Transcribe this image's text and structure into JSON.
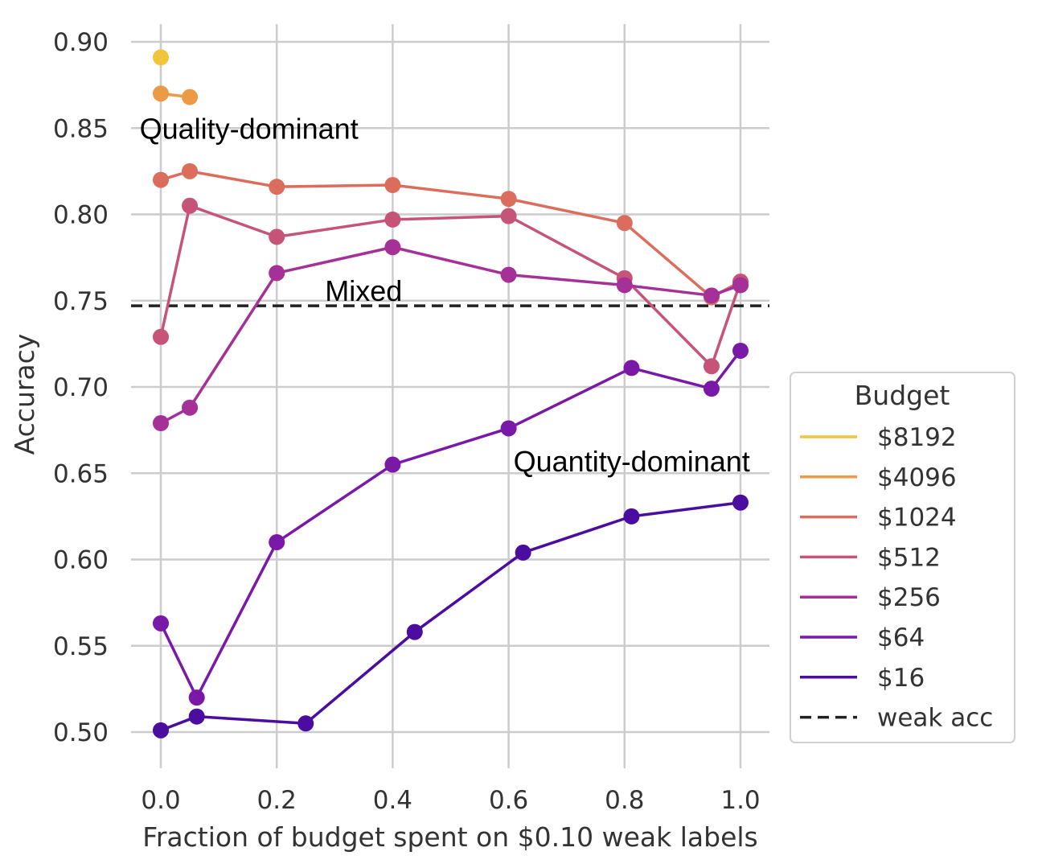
{
  "chart_data": {
    "type": "line",
    "title": "",
    "xlabel": "Fraction of budget spent on $0.10 weak labels",
    "ylabel": "Accuracy",
    "xlim": [
      -0.05,
      1.05
    ],
    "ylim": [
      0.48,
      0.91
    ],
    "xticks": [
      "0.0",
      "0.2",
      "0.4",
      "0.6",
      "0.8",
      "1.0"
    ],
    "xtick_values": [
      0.0,
      0.2,
      0.4,
      0.6,
      0.8,
      1.0
    ],
    "yticks": [
      "0.50",
      "0.55",
      "0.60",
      "0.65",
      "0.70",
      "0.75",
      "0.80",
      "0.85",
      "0.90"
    ],
    "ytick_values": [
      0.5,
      0.55,
      0.6,
      0.65,
      0.7,
      0.75,
      0.8,
      0.85,
      0.9
    ],
    "grid": true,
    "legend": {
      "title": "Budget",
      "position": "right"
    },
    "series": [
      {
        "name": "$8192",
        "color": "#f0c43c",
        "x": [
          0.0
        ],
        "y": [
          0.891
        ]
      },
      {
        "name": "$4096",
        "color": "#ec9a46",
        "x": [
          0.0,
          0.05
        ],
        "y": [
          0.87,
          0.868
        ]
      },
      {
        "name": "$1024",
        "color": "#dc6d5d",
        "x": [
          0.0,
          0.05,
          0.2,
          0.4,
          0.6,
          0.8,
          0.95,
          1.0
        ],
        "y": [
          0.82,
          0.825,
          0.816,
          0.817,
          0.809,
          0.795,
          0.752,
          0.761
        ]
      },
      {
        "name": "$512",
        "color": "#c65478",
        "x": [
          0.0,
          0.05,
          0.2,
          0.4,
          0.6,
          0.8,
          0.95,
          1.0
        ],
        "y": [
          0.729,
          0.805,
          0.787,
          0.797,
          0.799,
          0.763,
          0.712,
          0.761
        ]
      },
      {
        "name": "$256",
        "color": "#a53097",
        "x": [
          0.0,
          0.05,
          0.2,
          0.4,
          0.6,
          0.8,
          0.95,
          1.0
        ],
        "y": [
          0.679,
          0.688,
          0.766,
          0.781,
          0.765,
          0.759,
          0.753,
          0.759
        ]
      },
      {
        "name": "$64",
        "color": "#7a18a8",
        "x": [
          0.0,
          0.062,
          0.2,
          0.4,
          0.6,
          0.812,
          0.95,
          1.0
        ],
        "y": [
          0.563,
          0.52,
          0.61,
          0.655,
          0.676,
          0.711,
          0.699,
          0.721
        ]
      },
      {
        "name": "$16",
        "color": "#4b0ca0",
        "x": [
          0.0,
          0.062,
          0.25,
          0.438,
          0.625,
          0.812,
          1.0
        ],
        "y": [
          0.501,
          0.509,
          0.505,
          0.558,
          0.604,
          0.625,
          0.633
        ]
      }
    ],
    "reference_line": {
      "name": "weak acc",
      "y": 0.747,
      "color": "#222222",
      "style": "dashed"
    },
    "annotations": [
      {
        "text": "Quality-dominant",
        "x": -0.02,
        "y": 0.85
      },
      {
        "text": "Mixed",
        "x": 0.3,
        "y": 0.756
      },
      {
        "text": "Quantity-dominant",
        "x": 0.625,
        "y": 0.657
      }
    ]
  }
}
